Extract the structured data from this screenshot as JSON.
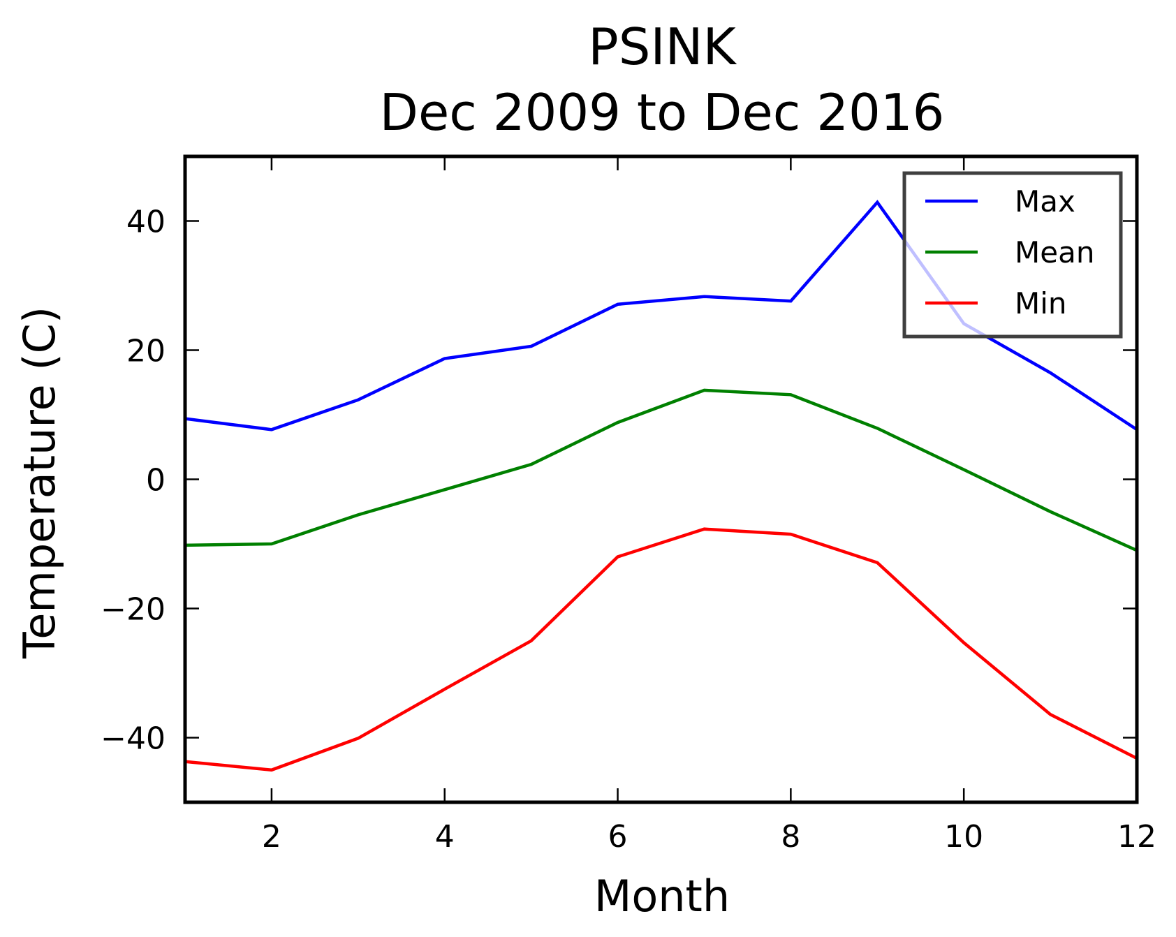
{
  "chart_data": {
    "type": "line",
    "title": "PSINK",
    "subtitle": "Dec 2009 to Dec 2016",
    "xlabel": "Month",
    "ylabel": "Temperature (C)",
    "xlim": [
      1,
      12
    ],
    "ylim": [
      -50,
      50
    ],
    "x_ticks": [
      2,
      4,
      6,
      8,
      10,
      12
    ],
    "y_ticks": [
      -40,
      -20,
      0,
      20,
      40
    ],
    "x_tick_labels": [
      "2",
      "4",
      "6",
      "8",
      "10",
      "12"
    ],
    "y_tick_labels": [
      "−40",
      "−20",
      "0",
      "20",
      "40"
    ],
    "grid": false,
    "legend_position": "top-right",
    "x": [
      1,
      2,
      3,
      4,
      5,
      6,
      7,
      8,
      9,
      10,
      11,
      12
    ],
    "series": [
      {
        "name": "Max",
        "color": "#0000ff",
        "values": [
          9.4,
          7.7,
          12.3,
          18.7,
          20.6,
          27.1,
          28.3,
          27.6,
          42.9,
          24.1,
          16.5,
          7.7
        ]
      },
      {
        "name": "Mean",
        "color": "#008000",
        "values": [
          -10.2,
          -10.0,
          -5.5,
          -1.6,
          2.3,
          8.8,
          13.8,
          13.1,
          7.9,
          1.5,
          -5.0,
          -11.0
        ]
      },
      {
        "name": "Min",
        "color": "#ff0000",
        "values": [
          -43.7,
          -45.0,
          -40.1,
          -32.5,
          -25.0,
          -12.0,
          -7.7,
          -8.5,
          -12.9,
          -25.3,
          -36.4,
          -43.2
        ]
      }
    ]
  }
}
